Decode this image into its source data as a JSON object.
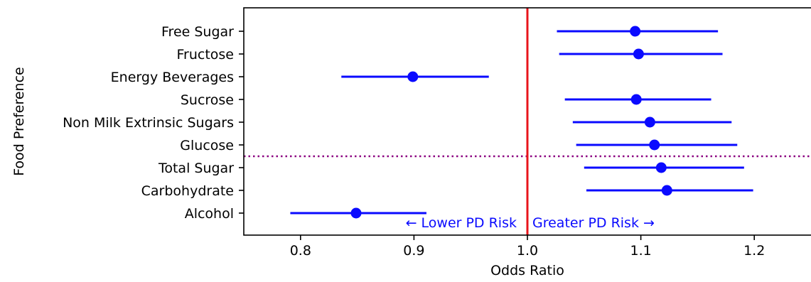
{
  "chart_data": {
    "type": "forest",
    "xlabel": "Odds Ratio",
    "ylabel": "Food Preference",
    "xlim": [
      0.75,
      1.25
    ],
    "xticks": [
      0.8,
      0.9,
      1.0,
      1.1,
      1.2
    ],
    "xtick_labels": [
      "0.8",
      "0.9",
      "1.0",
      "1.1",
      "1.2"
    ],
    "categories": [
      "Free Sugar",
      "Fructose",
      "Energy Beverages",
      "Sucrose",
      "Non Milk Extrinsic Sugars",
      "Glucose",
      "Total Sugar",
      "Carbohydrate",
      "Alcohol"
    ],
    "points": [
      {
        "label": "Free Sugar",
        "or": 1.095,
        "lower": 1.026,
        "upper": 1.168
      },
      {
        "label": "Fructose",
        "or": 1.098,
        "lower": 1.028,
        "upper": 1.172
      },
      {
        "label": "Energy Beverages",
        "or": 0.899,
        "lower": 0.836,
        "upper": 0.966
      },
      {
        "label": "Sucrose",
        "or": 1.096,
        "lower": 1.033,
        "upper": 1.162
      },
      {
        "label": "Non Milk Extrinsic Sugars",
        "or": 1.108,
        "lower": 1.04,
        "upper": 1.18
      },
      {
        "label": "Glucose",
        "or": 1.112,
        "lower": 1.043,
        "upper": 1.185
      },
      {
        "label": "Total Sugar",
        "or": 1.118,
        "lower": 1.05,
        "upper": 1.191
      },
      {
        "label": "Carbohydrate",
        "or": 1.123,
        "lower": 1.052,
        "upper": 1.199
      },
      {
        "label": "Alcohol",
        "or": 0.849,
        "lower": 0.791,
        "upper": 0.911
      }
    ],
    "reference_line": {
      "x": 1.0,
      "color": "#e8141b"
    },
    "separator_after_category": "Glucose",
    "separator_color": "#8b0080",
    "point_color": "#0a0aff",
    "annotations": {
      "left": "← Lower PD Risk",
      "right": "Greater PD Risk →"
    },
    "grid": false
  }
}
